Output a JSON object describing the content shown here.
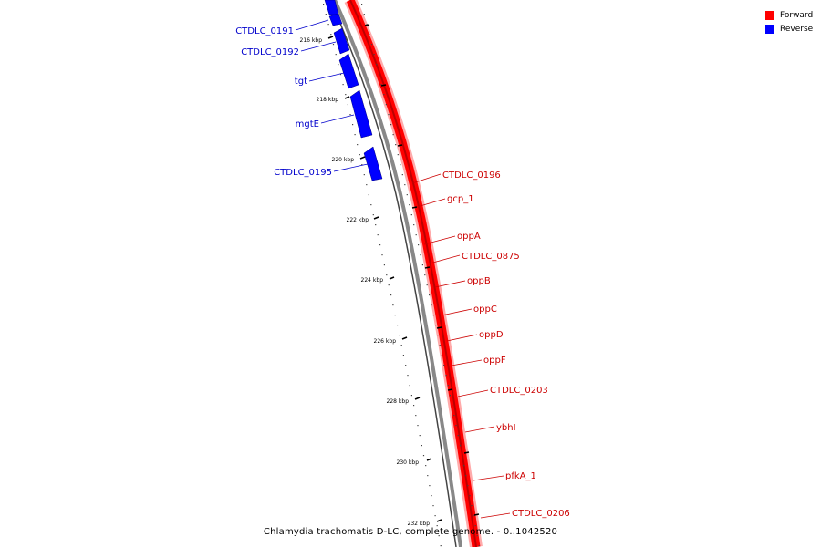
{
  "legend": {
    "forward_label": "Forward",
    "reverse_label": "Reverse",
    "forward_color": "#ff0000",
    "reverse_color": "#0000ff"
  },
  "caption": "Chlamydia trachomatis D-LC, complete genome. - 0..1042520",
  "ticks": [
    "216 kbp",
    "218 kbp",
    "220 kbp",
    "222 kbp",
    "224 kbp",
    "226 kbp",
    "228 kbp",
    "230 kbp",
    "232 kbp"
  ],
  "reverse_genes": [
    "CTDLC_0191",
    "CTDLC_0192",
    "tgt",
    "mgtE",
    "CTDLC_0195"
  ],
  "forward_genes": [
    "CTDLC_0196",
    "gcp_1",
    "oppA",
    "CTDLC_0875",
    "oppB",
    "oppC",
    "oppD",
    "oppF",
    "CTDLC_0203",
    "ybhI",
    "pfkA_1",
    "CTDLC_0206"
  ]
}
